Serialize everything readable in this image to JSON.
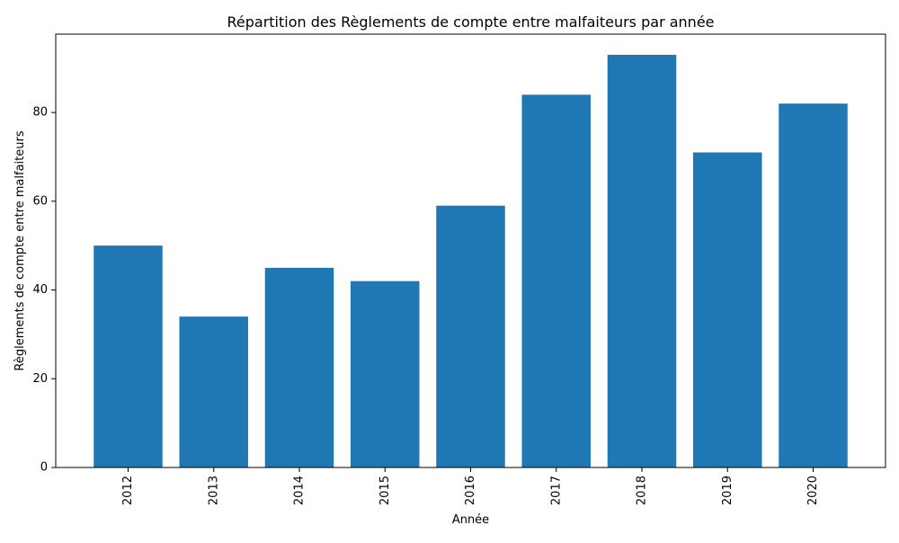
{
  "chart_data": {
    "type": "bar",
    "title": "Répartition des Règlements de compte entre malfaiteurs par année",
    "xlabel": "Année",
    "ylabel": "Règlements de compte entre malfaiteurs",
    "categories": [
      "2012",
      "2013",
      "2014",
      "2015",
      "2016",
      "2017",
      "2018",
      "2019",
      "2020"
    ],
    "values": [
      50,
      34,
      45,
      42,
      59,
      84,
      93,
      71,
      82
    ],
    "ylim": [
      0,
      97.65
    ],
    "yticks": [
      0,
      20,
      40,
      60,
      80
    ],
    "bar_color": "#1f77b4",
    "grid": false,
    "legend": "none"
  }
}
